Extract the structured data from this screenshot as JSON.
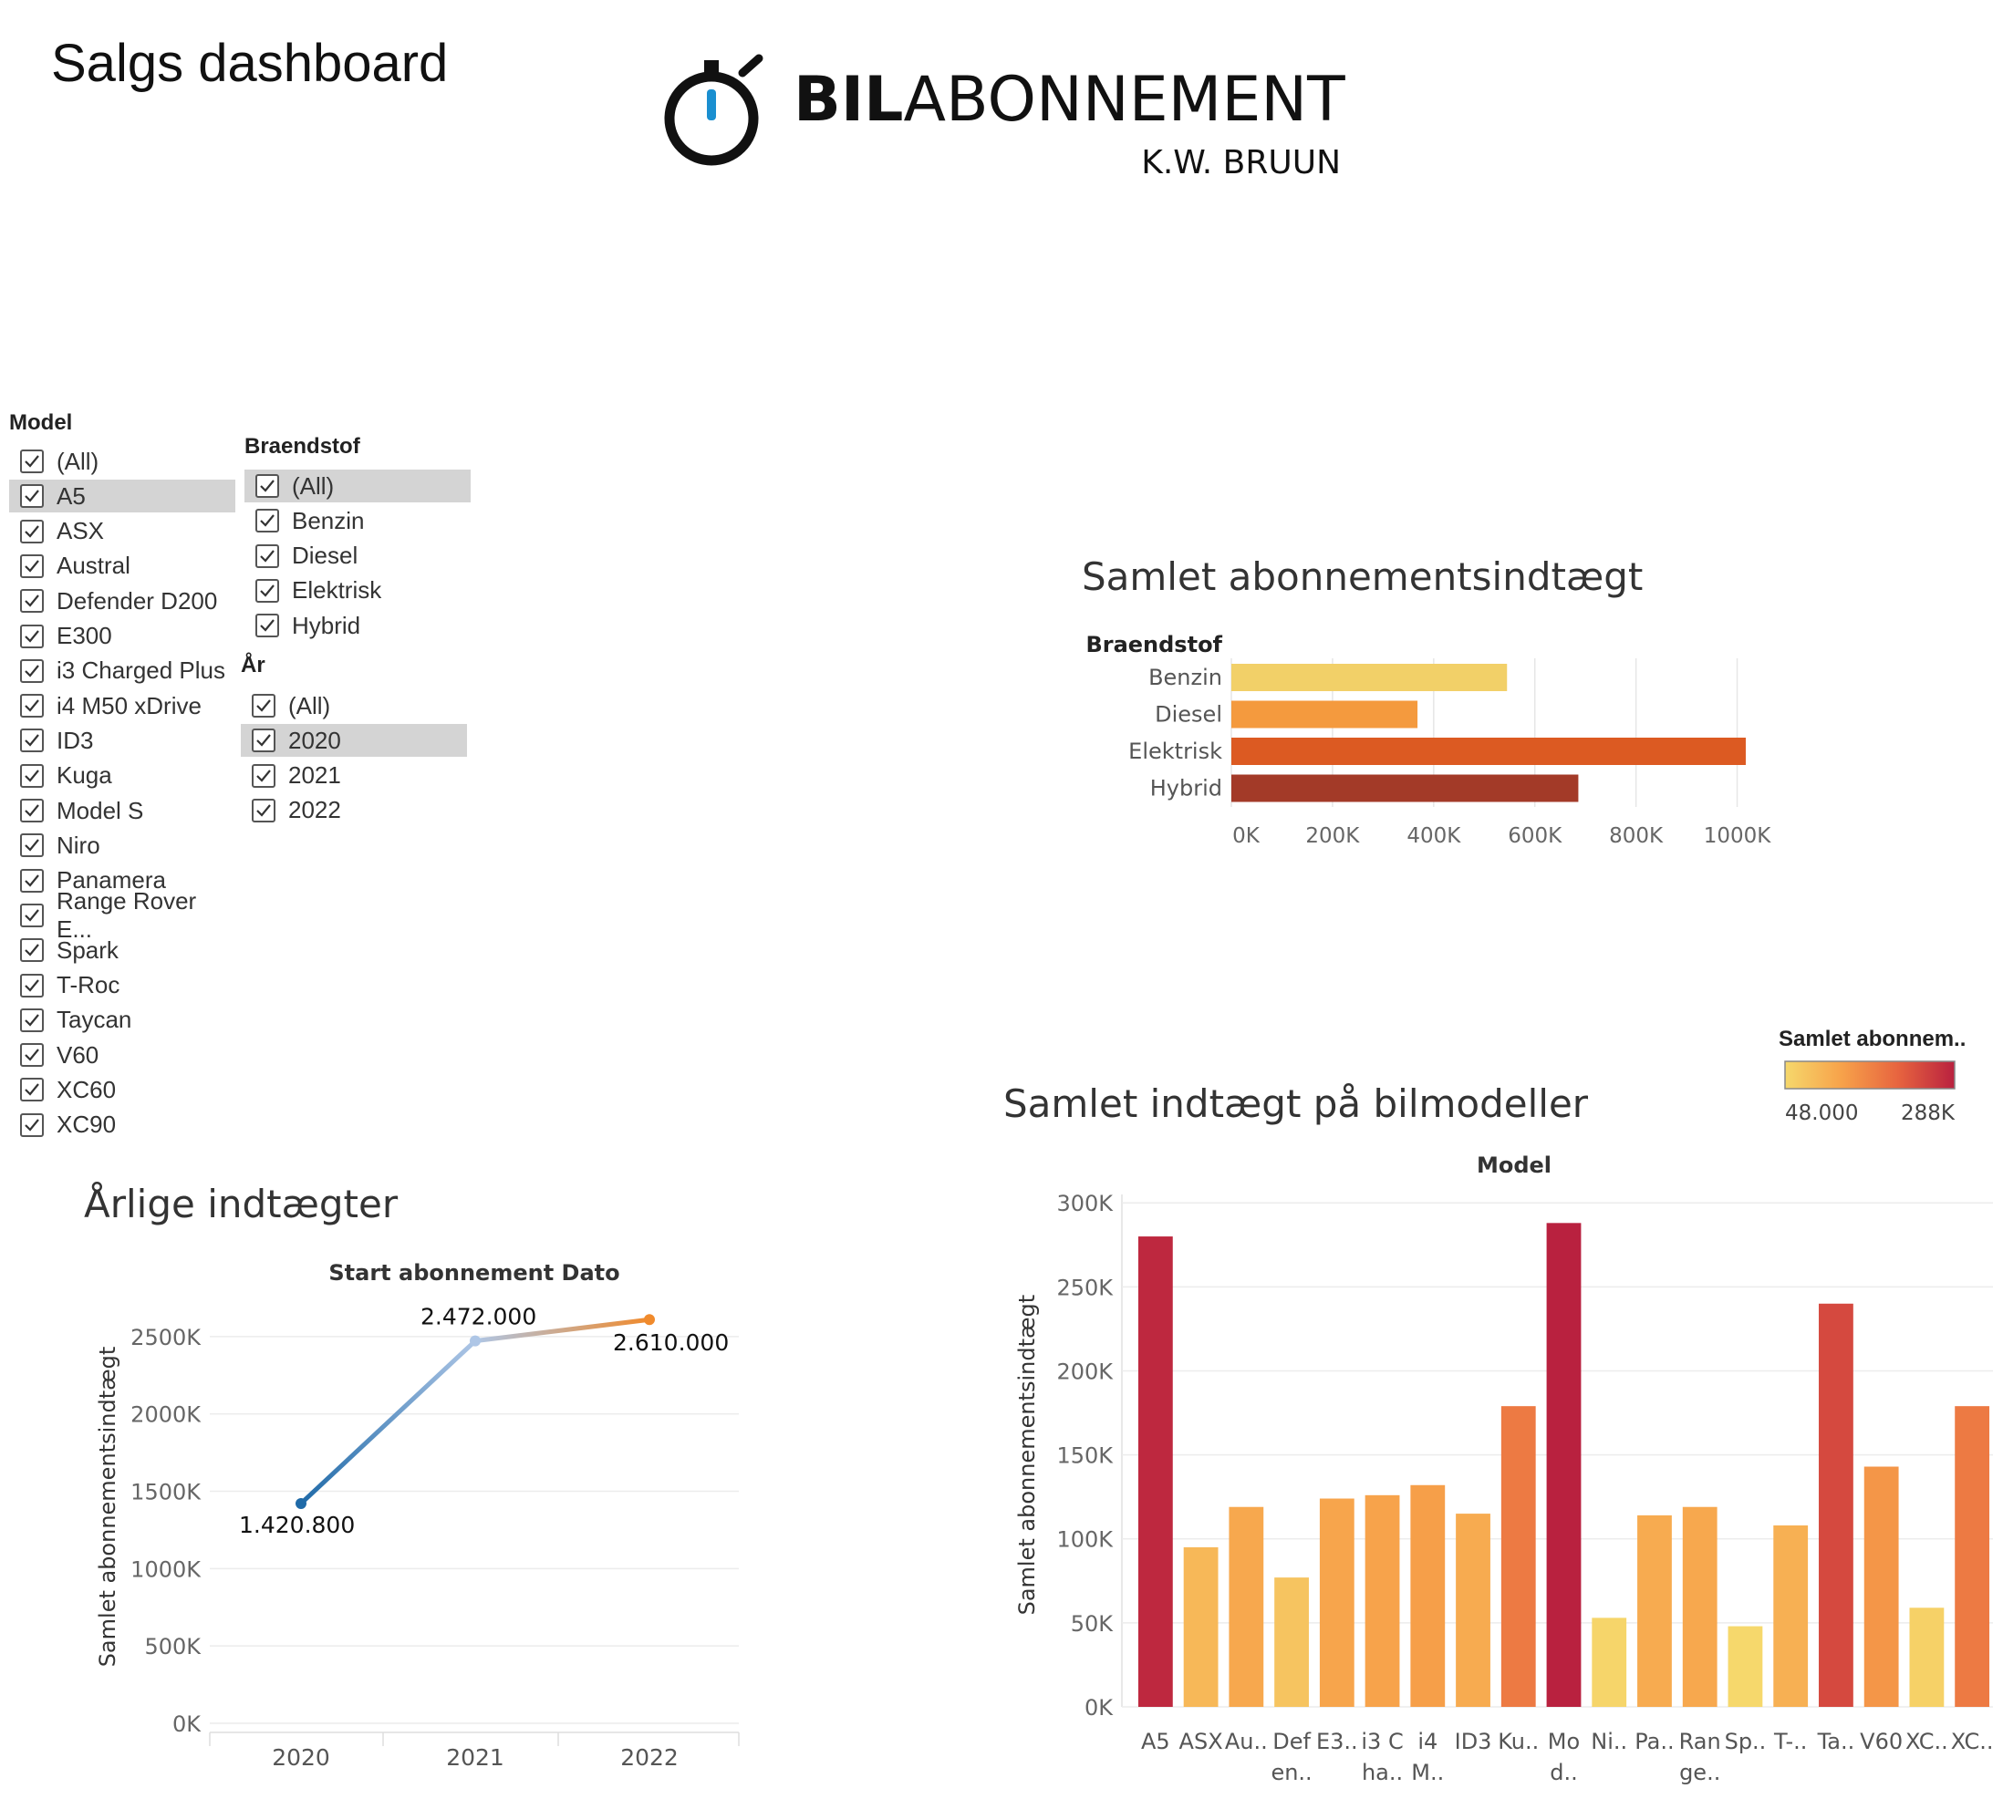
{
  "dashboard_title": "Salgs dashboard",
  "logo": {
    "brand_bold": "BIL",
    "brand_light": "ABONNEMENT",
    "sub": "K.W. BRUUN",
    "icon": "stopwatch-icon"
  },
  "filters": {
    "model": {
      "title": "Model",
      "items": [
        "(All)",
        "A5",
        "ASX",
        "Austral",
        "Defender D200",
        "E300",
        "i3 Charged Plus",
        "i4 M50 xDrive",
        "ID3",
        "Kuga",
        "Model S",
        "Niro",
        "Panamera",
        "Range Rover E...",
        "Spark",
        "T-Roc",
        "Taycan",
        "V60",
        "XC60",
        "XC90"
      ],
      "highlighted": 1
    },
    "braendstof": {
      "title": "Braendstof",
      "items": [
        "(All)",
        "Benzin",
        "Diesel",
        "Elektrisk",
        "Hybrid"
      ],
      "highlighted": 0
    },
    "aar": {
      "title": "År",
      "items": [
        "(All)",
        "2020",
        "2021",
        "2022"
      ],
      "highlighted": 1
    }
  },
  "chart_data": [
    {
      "type": "bar",
      "orientation": "horizontal",
      "title": "Samlet abonnementsindtægt",
      "category_header": "Braendstof",
      "categories": [
        "Benzin",
        "Diesel",
        "Elektrisk",
        "Hybrid"
      ],
      "values": [
        545000,
        368000,
        1017000,
        686000
      ],
      "colors": [
        "#f2d068",
        "#f49a3e",
        "#dc5a22",
        "#a33a28"
      ],
      "xlim": [
        0,
        1100000
      ],
      "xticks": [
        0,
        200000,
        400000,
        600000,
        800000,
        1000000
      ],
      "xtick_labels": [
        "0K",
        "200K",
        "400K",
        "600K",
        "800K",
        "1000K"
      ],
      "grid": true
    },
    {
      "type": "line",
      "title": "Årlige indtægter",
      "xlabel": "Start abonnement Dato",
      "ylabel": "Samlet abonnementsindtægt",
      "x": [
        "2020",
        "2021",
        "2022"
      ],
      "values": [
        1420800,
        2472000,
        2610000
      ],
      "data_labels": [
        "1.420.800",
        "2.472.000",
        "2.610.000"
      ],
      "ylim": [
        0,
        2800000
      ],
      "yticks": [
        0,
        500000,
        1000000,
        1500000,
        2000000,
        2500000
      ],
      "ytick_labels": [
        "0K",
        "500K",
        "1000K",
        "1500K",
        "2000K",
        "2500K"
      ],
      "colors": [
        "#1f6aa8",
        "#aec6e6",
        "#f08a2c"
      ],
      "grid": true
    },
    {
      "type": "bar",
      "title": "Samlet indtægt på bilmodeller",
      "xlabel": "Model",
      "ylabel": "Samlet abonnementsindtægt",
      "categories": [
        "A5",
        "ASX",
        "Au..",
        "Def en..",
        "E3..",
        "i3 C ha..",
        "i4 M..",
        "ID3",
        "Ku..",
        "Mo d..",
        "Ni..",
        "Pa..",
        "Ran ge..",
        "Sp..",
        "T-..",
        "Ta..",
        "V60",
        "XC..",
        "XC.."
      ],
      "tick_lines": [
        [
          "A5"
        ],
        [
          "ASX"
        ],
        [
          "Au.."
        ],
        [
          "Def",
          "en.."
        ],
        [
          "E3.."
        ],
        [
          "i3 C",
          "ha.."
        ],
        [
          "i4",
          "M.."
        ],
        [
          "ID3"
        ],
        [
          "Ku.."
        ],
        [
          "Mo",
          "d.."
        ],
        [
          "Ni.."
        ],
        [
          "Pa.."
        ],
        [
          "Ran",
          "ge.."
        ],
        [
          "Sp.."
        ],
        [
          "T-.."
        ],
        [
          "Ta.."
        ],
        [
          "V60"
        ],
        [
          "XC.."
        ],
        [
          "XC.."
        ]
      ],
      "values": [
        280000,
        95000,
        119000,
        77000,
        124000,
        126000,
        132000,
        115000,
        179000,
        288000,
        53000,
        114000,
        119000,
        48000,
        108000,
        240000,
        143000,
        59000,
        179000
      ],
      "ylim": [
        0,
        305000
      ],
      "yticks": [
        0,
        50000,
        100000,
        150000,
        200000,
        250000,
        300000
      ],
      "ytick_labels": [
        "0K",
        "50K",
        "100K",
        "150K",
        "200K",
        "250K",
        "300K"
      ],
      "color_legend": {
        "title": "Samlet abonnem..",
        "min_label": "48.000",
        "max_label": "288K",
        "min": 48000,
        "max": 288000,
        "colors": [
          "#f6d86c",
          "#f7a24a",
          "#e7643f",
          "#b9213f"
        ]
      },
      "grid": true
    }
  ]
}
